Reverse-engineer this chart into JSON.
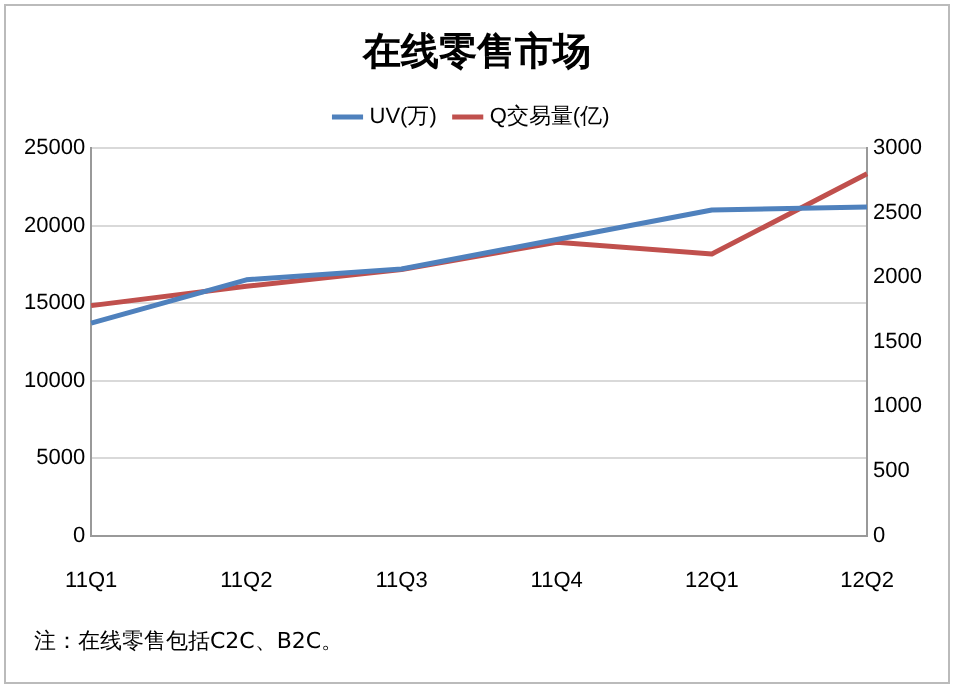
{
  "chart_data": {
    "type": "line",
    "title": "在线零售市场",
    "categories": [
      "11Q1",
      "11Q2",
      "11Q3",
      "11Q4",
      "12Q1",
      "12Q2"
    ],
    "series": [
      {
        "name": "UV(万)",
        "color": "#4f81bd",
        "values": [
          13700,
          16500,
          17200,
          19100,
          21000,
          21200
        ]
      },
      {
        "name": "Q交易量(亿)",
        "color": "#c0504d",
        "axis": "y2",
        "values": [
          1780,
          1930,
          2060,
          2270,
          2180,
          2800
        ]
      }
    ],
    "ylim": [
      0,
      25000
    ],
    "yticks": [
      0,
      5000,
      10000,
      15000,
      20000,
      25000
    ],
    "y2lim": [
      0,
      3000
    ],
    "y2ticks": [
      0,
      500,
      1000,
      1500,
      2000,
      2500,
      3000
    ],
    "grid": "y",
    "legend": "top",
    "marker": "none",
    "line_style": "solid",
    "annotations": [
      "注：在线零售包括C2C、B2C。"
    ]
  }
}
